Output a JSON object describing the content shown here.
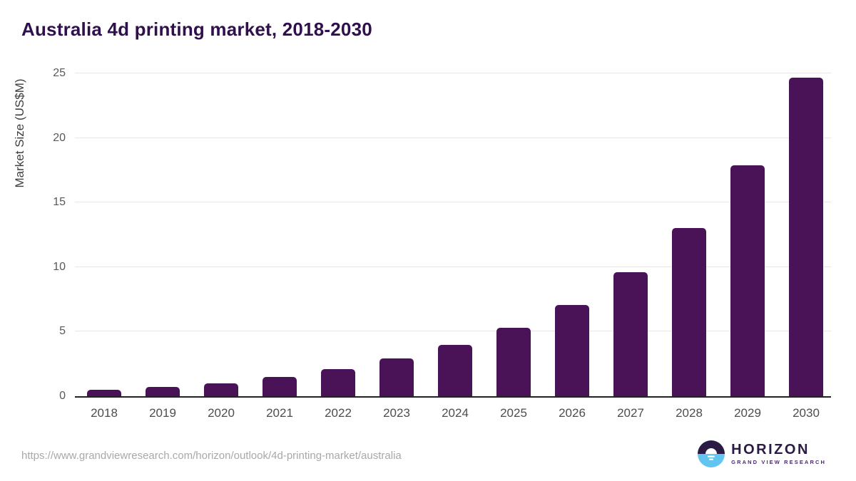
{
  "chart_data": {
    "type": "bar",
    "title": "Australia 4d printing market, 2018-2030",
    "categories": [
      "2018",
      "2019",
      "2020",
      "2021",
      "2022",
      "2023",
      "2024",
      "2025",
      "2026",
      "2027",
      "2028",
      "2029",
      "2030"
    ],
    "values": [
      0.5,
      0.7,
      1.0,
      1.5,
      2.1,
      2.95,
      3.95,
      5.3,
      7.05,
      9.6,
      13.0,
      17.9,
      24.65
    ],
    "xlabel": "",
    "ylabel": "Market Size (US$M)",
    "yticks": [
      0,
      5,
      10,
      15,
      20,
      25
    ],
    "ylim": [
      0,
      25
    ],
    "bar_color": "#4a1358",
    "grid": true,
    "gridline_color": "#e7e7e8",
    "axis_line_color": "#222222",
    "legend": false
  },
  "footer": {
    "source_url": "https://www.grandviewresearch.com/horizon/outlook/4d-printing-market/australia",
    "logo": {
      "name": "HORIZON",
      "subtitle": "GRAND VIEW RESEARCH",
      "icon": "sunset-circle-icon",
      "icon_top_color": "#2b1b44",
      "icon_bottom_color": "#62c5f0",
      "name_color": "#2b1b44",
      "subtitle_color": "#4a2d6b"
    }
  }
}
